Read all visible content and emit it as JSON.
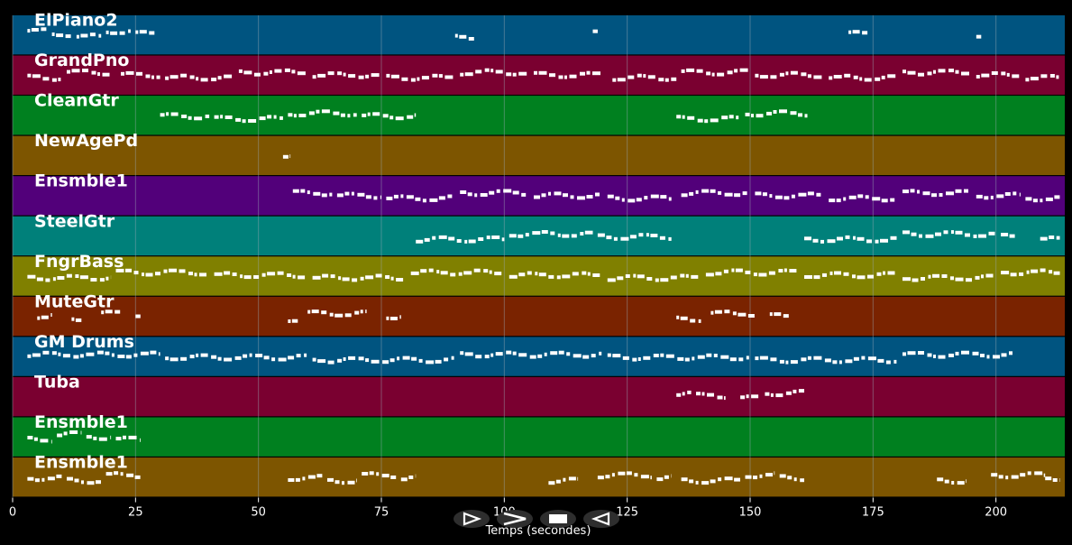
{
  "xaxis": {
    "label": "Temps (secondes)",
    "ticks": [
      0,
      25,
      50,
      75,
      100,
      125,
      150,
      175,
      200
    ],
    "max": 214
  },
  "colors": {
    "background": "#000000",
    "grid": "#9aa8b4",
    "note": "#ffffff",
    "button": "#2e2e2e"
  },
  "controls": [
    {
      "name": "play-button",
      "icon": "play-outline-icon"
    },
    {
      "name": "fast-forward-button",
      "icon": "fast-forward-icon"
    },
    {
      "name": "stop-button",
      "icon": "stop-icon"
    },
    {
      "name": "rewind-button",
      "icon": "rewind-icon"
    }
  ],
  "tracks": [
    {
      "name": "ElPiano2",
      "color": "#005480",
      "notes": [
        [
          3,
          7
        ],
        [
          8,
          12
        ],
        [
          13,
          18
        ],
        [
          19,
          24
        ],
        [
          25,
          29
        ],
        [
          90,
          94
        ],
        [
          118,
          119
        ],
        [
          170,
          174
        ],
        [
          196,
          197
        ]
      ]
    },
    {
      "name": "GrandPno",
      "color": "#7a0030",
      "notes": [
        [
          3,
          10
        ],
        [
          11,
          20
        ],
        [
          22,
          30
        ],
        [
          31,
          45
        ],
        [
          46,
          60
        ],
        [
          61,
          75
        ],
        [
          76,
          90
        ],
        [
          91,
          105
        ],
        [
          106,
          120
        ],
        [
          122,
          135
        ],
        [
          136,
          150
        ],
        [
          151,
          165
        ],
        [
          166,
          180
        ],
        [
          181,
          195
        ],
        [
          196,
          205
        ],
        [
          206,
          213
        ]
      ]
    },
    {
      "name": "CleanGtr",
      "color": "#00801f",
      "notes": [
        [
          30,
          40
        ],
        [
          41,
          55
        ],
        [
          56,
          70
        ],
        [
          71,
          82
        ],
        [
          135,
          148
        ],
        [
          149,
          162
        ]
      ]
    },
    {
      "name": "NewAgePd",
      "color": "#7d5500",
      "notes": [
        [
          55,
          56.5
        ]
      ]
    },
    {
      "name": "Ensmble1",
      "color": "#52007a",
      "notes": [
        [
          57,
          65
        ],
        [
          66,
          75
        ],
        [
          76,
          90
        ],
        [
          91,
          105
        ],
        [
          106,
          120
        ],
        [
          121,
          134
        ],
        [
          136,
          150
        ],
        [
          151,
          165
        ],
        [
          166,
          180
        ],
        [
          181,
          195
        ],
        [
          196,
          205
        ],
        [
          206,
          213
        ]
      ]
    },
    {
      "name": "SteelGtr",
      "color": "#00807a",
      "notes": [
        [
          82,
          100
        ],
        [
          101,
          118
        ],
        [
          119,
          134
        ],
        [
          161,
          180
        ],
        [
          181,
          200
        ],
        [
          201,
          204
        ],
        [
          209,
          213
        ]
      ]
    },
    {
      "name": "FngrBass",
      "color": "#808000",
      "notes": [
        [
          3,
          20
        ],
        [
          21,
          40
        ],
        [
          41,
          60
        ],
        [
          61,
          80
        ],
        [
          81,
          100
        ],
        [
          101,
          120
        ],
        [
          121,
          140
        ],
        [
          141,
          160
        ],
        [
          161,
          180
        ],
        [
          181,
          200
        ],
        [
          201,
          213
        ]
      ]
    },
    {
      "name": "MuteGtr",
      "color": "#7a2300",
      "notes": [
        [
          5,
          8
        ],
        [
          12,
          14
        ],
        [
          18,
          22
        ],
        [
          25,
          26
        ],
        [
          56,
          58
        ],
        [
          60,
          72
        ],
        [
          76,
          79
        ],
        [
          135,
          140
        ],
        [
          142,
          151
        ],
        [
          154,
          158
        ]
      ]
    },
    {
      "name": "GM Drums",
      "color": "#005480",
      "notes": [
        [
          3,
          30
        ],
        [
          31,
          60
        ],
        [
          61,
          90
        ],
        [
          91,
          120
        ],
        [
          121,
          150
        ],
        [
          151,
          180
        ],
        [
          181,
          204
        ]
      ]
    },
    {
      "name": "Tuba",
      "color": "#7a0030",
      "notes": [
        [
          135,
          138
        ],
        [
          139,
          145
        ],
        [
          148,
          152
        ],
        [
          153,
          161
        ]
      ]
    },
    {
      "name": "Ensmble1",
      "color": "#00801f",
      "notes": [
        [
          3,
          8
        ],
        [
          9,
          14
        ],
        [
          15,
          20
        ],
        [
          21,
          26
        ]
      ]
    },
    {
      "name": "Ensmble1",
      "color": "#7d5500",
      "notes": [
        [
          3,
          10
        ],
        [
          11,
          18
        ],
        [
          19,
          26
        ],
        [
          56,
          63
        ],
        [
          64,
          70
        ],
        [
          71,
          78
        ],
        [
          79,
          82
        ],
        [
          109,
          115
        ],
        [
          119,
          130
        ],
        [
          131,
          134
        ],
        [
          136,
          148
        ],
        [
          149,
          155
        ],
        [
          156,
          161
        ],
        [
          188,
          194
        ],
        [
          199,
          210
        ],
        [
          210,
          213
        ]
      ]
    }
  ]
}
